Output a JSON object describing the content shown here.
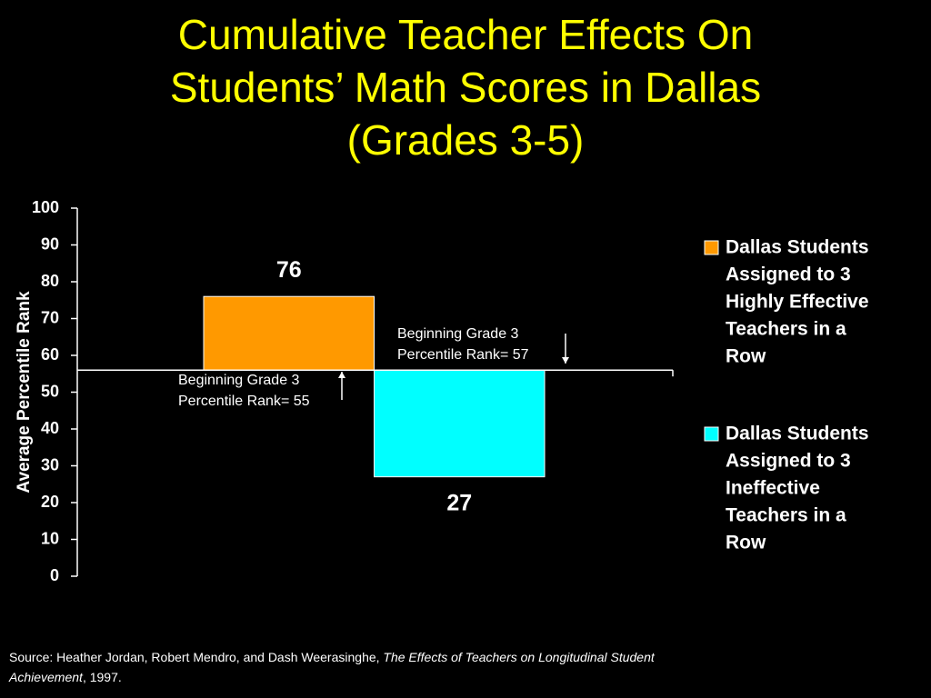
{
  "chart_data": {
    "type": "bar",
    "title": [
      "Cumulative Teacher Effects On",
      "Students’ Math Scores in Dallas",
      "(Grades 3-5)"
    ],
    "y_label": "Average Percentile Rank",
    "categories": [
      null
    ],
    "series": [
      {
        "name": [
          "Dallas Students",
          "Assigned to 3",
          "Highly Effective",
          "Teachers in a",
          "Row"
        ],
        "color": "#ff9900",
        "values": [
          76
        ]
      },
      {
        "name": [
          "Dallas Students",
          "Assigned to 3",
          "Ineffective",
          "Teachers in a",
          "Row"
        ],
        "color": "#00ffff",
        "values": [
          27
        ]
      }
    ],
    "xaxis_crosses_at": 56,
    "ylim": [
      0,
      100
    ],
    "yticks": [
      0,
      10,
      20,
      30,
      40,
      50,
      60,
      70,
      80,
      90,
      100
    ],
    "legend": "right",
    "annotations": [
      {
        "lines": [
          "Beginning Grade 3",
          "Percentile Rank= 57"
        ],
        "arrow": "down"
      },
      {
        "lines": [
          "Beginning Grade 3",
          "Percentile Rank= 55"
        ],
        "arrow": "up"
      }
    ]
  },
  "source": {
    "prefix": "Source:  Heather Jordan, Robert Mendro, and Dash Weerasinghe, ",
    "title_line1": "The Effects of Teachers on Longitudinal Student",
    "title_line2": "Achievement",
    "suffix": ", 1997."
  }
}
